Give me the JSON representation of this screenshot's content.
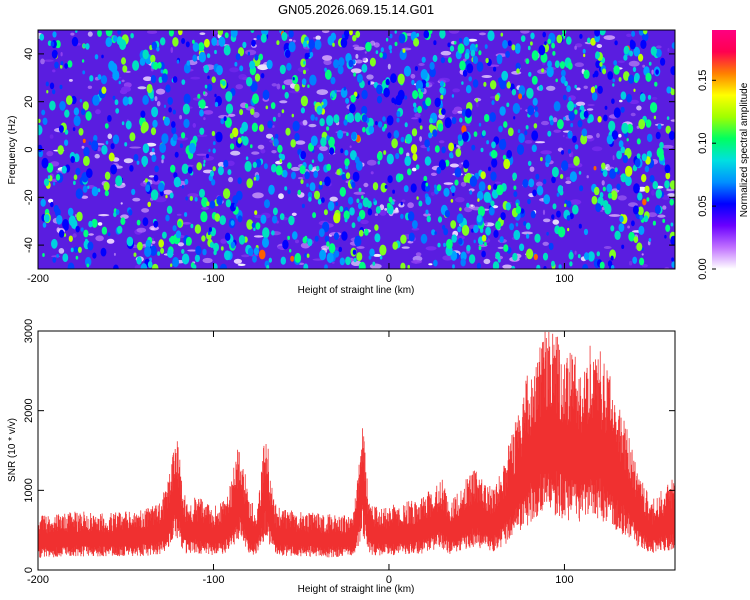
{
  "title": "GN05.2026.069.15.14.G01",
  "chart_data": [
    {
      "type": "heatmap",
      "xlabel": "Height of straight line (km)",
      "ylabel": "Frequency (Hz)",
      "xlim": [
        -200,
        163
      ],
      "ylim": [
        -50,
        50
      ],
      "x_ticks": [
        -200,
        -100,
        0,
        100
      ],
      "x_tick_labels": [
        "-200",
        "-100",
        "0",
        "100"
      ],
      "y_ticks": [
        -40,
        -20,
        0,
        20,
        40
      ],
      "y_tick_labels": [
        "-40",
        "-20",
        "0",
        "20",
        "40"
      ],
      "grid": false,
      "colorbar": {
        "label": "Normalized spectral amplitude",
        "range": [
          0.0,
          0.19
        ],
        "ticks": [
          0.0,
          0.05,
          0.1,
          0.15
        ],
        "tick_labels": [
          "0.00",
          "0.05",
          "0.10",
          "0.15"
        ],
        "colors": [
          "#ffffff",
          "#c070ff",
          "#6a00ff",
          "#0000ff",
          "#0090ff",
          "#00e0e0",
          "#00ff60",
          "#a0ff00",
          "#ffff00",
          "#ff8000",
          "#ff0050",
          "#ff0080"
        ]
      }
    },
    {
      "type": "line",
      "xlabel": "Height of straight line (km)",
      "ylabel": "SNR (10 * v/v)",
      "xlim": [
        -200,
        163
      ],
      "ylim": [
        0,
        3000
      ],
      "x_ticks": [
        -200,
        -100,
        0,
        100
      ],
      "x_tick_labels": [
        "-200",
        "-100",
        "0",
        "100"
      ],
      "y_ticks": [
        0,
        1000,
        2000,
        3000
      ],
      "y_tick_labels": [
        "0",
        "1000",
        "2000",
        "3000"
      ],
      "grid": false,
      "series": [
        {
          "color": "#f03030",
          "x": [
            -200,
            -195,
            -190,
            -180,
            -170,
            -160,
            -150,
            -140,
            -130,
            -125,
            -122,
            -120,
            -118,
            -115,
            -110,
            -105,
            -100,
            -95,
            -90,
            -87,
            -85,
            -82,
            -80,
            -75,
            -72,
            -70,
            -68,
            -65,
            -60,
            -55,
            -50,
            -45,
            -40,
            -35,
            -30,
            -25,
            -20,
            -17,
            -15,
            -13,
            -10,
            -5,
            0,
            5,
            10,
            15,
            20,
            25,
            30,
            35,
            40,
            45,
            50,
            55,
            60,
            65,
            70,
            75,
            80,
            85,
            90,
            95,
            100,
            105,
            110,
            115,
            120,
            125,
            130,
            135,
            140,
            145,
            150,
            155,
            160,
            163
          ],
          "y": [
            430,
            460,
            450,
            480,
            470,
            460,
            480,
            500,
            560,
            800,
            1150,
            1050,
            700,
            560,
            600,
            560,
            520,
            560,
            700,
            950,
            1050,
            800,
            560,
            540,
            900,
            1250,
            800,
            540,
            500,
            480,
            470,
            470,
            460,
            450,
            460,
            450,
            470,
            900,
            1300,
            800,
            520,
            520,
            520,
            540,
            560,
            560,
            600,
            680,
            760,
            560,
            640,
            780,
            820,
            720,
            660,
            860,
            1100,
            1350,
            1650,
            1850,
            1950,
            1950,
            1800,
            1750,
            1700,
            1850,
            1800,
            1650,
            1400,
            1200,
            900,
            700,
            560,
            660,
            700,
            780
          ]
        }
      ]
    }
  ]
}
